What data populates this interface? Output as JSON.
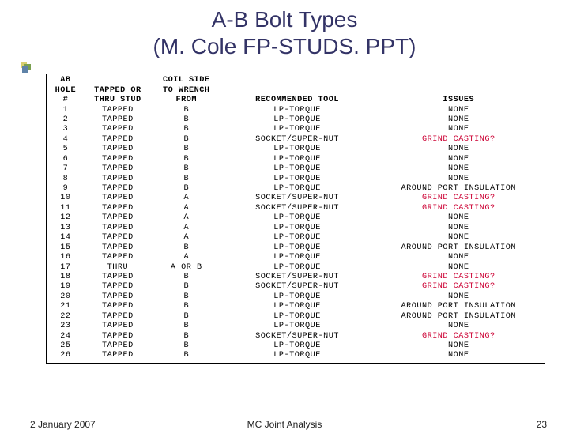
{
  "title_line1": "A-B Bolt Types",
  "title_line2": "(M. Cole FP-STUDS. PPT)",
  "headers": {
    "c1_l1": "AB",
    "c1_l2": "HOLE",
    "c1_l3": "#",
    "c2_l1": "",
    "c2_l2": "TAPPED OR",
    "c2_l3": "THRU STUD",
    "c3_l1": "COIL SIDE",
    "c3_l2": "TO WRENCH",
    "c3_l3": "FROM",
    "c4_l1": "",
    "c4_l2": "",
    "c4_l3": "RECOMMENDED TOOL",
    "c5_l1": "",
    "c5_l2": "",
    "c5_l3": "ISSUES"
  },
  "rows": [
    {
      "n": "1",
      "t": "TAPPED",
      "s": "B",
      "tool": "LP-TORQUE",
      "issue": "NONE",
      "red": false
    },
    {
      "n": "2",
      "t": "TAPPED",
      "s": "B",
      "tool": "LP-TORQUE",
      "issue": "NONE",
      "red": false
    },
    {
      "n": "3",
      "t": "TAPPED",
      "s": "B",
      "tool": "LP-TORQUE",
      "issue": "NONE",
      "red": false
    },
    {
      "n": "4",
      "t": "TAPPED",
      "s": "B",
      "tool": "SOCKET/SUPER-NUT",
      "issue": "GRIND CASTING?",
      "red": true
    },
    {
      "n": "5",
      "t": "TAPPED",
      "s": "B",
      "tool": "LP-TORQUE",
      "issue": "NONE",
      "red": false
    },
    {
      "n": "6",
      "t": "TAPPED",
      "s": "B",
      "tool": "LP-TORQUE",
      "issue": "NONE",
      "red": false
    },
    {
      "n": "7",
      "t": "TAPPED",
      "s": "B",
      "tool": "LP-TORQUE",
      "issue": "NONE",
      "red": false
    },
    {
      "n": "8",
      "t": "TAPPED",
      "s": "B",
      "tool": "LP-TORQUE",
      "issue": "NONE",
      "red": false
    },
    {
      "n": "9",
      "t": "TAPPED",
      "s": "B",
      "tool": "LP-TORQUE",
      "issue": "AROUND PORT INSULATION",
      "red": false
    },
    {
      "n": "10",
      "t": "TAPPED",
      "s": "A",
      "tool": "SOCKET/SUPER-NUT",
      "issue": "GRIND CASTING?",
      "red": true
    },
    {
      "n": "11",
      "t": "TAPPED",
      "s": "A",
      "tool": "SOCKET/SUPER-NUT",
      "issue": "GRIND CASTING?",
      "red": true
    },
    {
      "n": "12",
      "t": "TAPPED",
      "s": "A",
      "tool": "LP-TORQUE",
      "issue": "NONE",
      "red": false
    },
    {
      "n": "13",
      "t": "TAPPED",
      "s": "A",
      "tool": "LP-TORQUE",
      "issue": "NONE",
      "red": false
    },
    {
      "n": "14",
      "t": "TAPPED",
      "s": "A",
      "tool": "LP-TORQUE",
      "issue": "NONE",
      "red": false
    },
    {
      "n": "15",
      "t": "TAPPED",
      "s": "B",
      "tool": "LP-TORQUE",
      "issue": "AROUND PORT INSULATION",
      "red": false
    },
    {
      "n": "16",
      "t": "TAPPED",
      "s": "A",
      "tool": "LP-TORQUE",
      "issue": "NONE",
      "red": false
    },
    {
      "n": "17",
      "t": "THRU",
      "s": "A OR B",
      "tool": "LP-TORQUE",
      "issue": "NONE",
      "red": false
    },
    {
      "n": "18",
      "t": "TAPPED",
      "s": "B",
      "tool": "SOCKET/SUPER-NUT",
      "issue": "GRIND CASTING?",
      "red": true
    },
    {
      "n": "19",
      "t": "TAPPED",
      "s": "B",
      "tool": "SOCKET/SUPER-NUT",
      "issue": "GRIND CASTING?",
      "red": true
    },
    {
      "n": "20",
      "t": "TAPPED",
      "s": "B",
      "tool": "LP-TORQUE",
      "issue": "NONE",
      "red": false
    },
    {
      "n": "21",
      "t": "TAPPED",
      "s": "B",
      "tool": "LP-TORQUE",
      "issue": "AROUND PORT INSULATION",
      "red": false
    },
    {
      "n": "22",
      "t": "TAPPED",
      "s": "B",
      "tool": "LP-TORQUE",
      "issue": "AROUND PORT INSULATION",
      "red": false
    },
    {
      "n": "23",
      "t": "TAPPED",
      "s": "B",
      "tool": "LP-TORQUE",
      "issue": "NONE",
      "red": false
    },
    {
      "n": "24",
      "t": "TAPPED",
      "s": "B",
      "tool": "SOCKET/SUPER-NUT",
      "issue": "GRIND CASTING?",
      "red": true
    },
    {
      "n": "25",
      "t": "TAPPED",
      "s": "B",
      "tool": "LP-TORQUE",
      "issue": "NONE",
      "red": false
    },
    {
      "n": "26",
      "t": "TAPPED",
      "s": "B",
      "tool": "LP-TORQUE",
      "issue": "NONE",
      "red": false
    }
  ],
  "footer": {
    "date": "2 January 2007",
    "center": "MC Joint Analysis",
    "page": "23"
  },
  "colors": {
    "title": "#333366",
    "red": "#cc0033",
    "bullet1": "#d8d070",
    "bullet2": "#7aa050",
    "bullet3": "#5f83a8"
  }
}
